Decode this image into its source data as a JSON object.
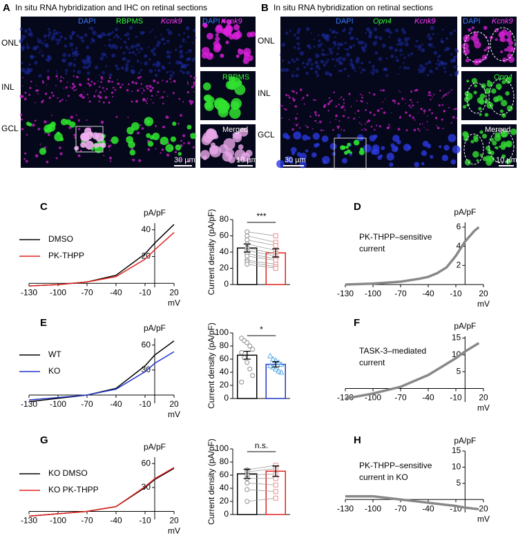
{
  "figure": {
    "panels": [
      {
        "label": "A",
        "title": "In situ RNA hybridization and IHC on retinal sections",
        "channels": [
          "DAPI",
          "RBPMS",
          "Kcnk9"
        ],
        "layers": [
          "ONL",
          "INL",
          "GCL"
        ],
        "scale_bar": "30 µm",
        "insets": [
          [
            "DAPI",
            "Kcnk9"
          ],
          [
            "RBPMS"
          ],
          [
            "Merged"
          ]
        ],
        "inset_scale_bar": "10 µm"
      },
      {
        "label": "B",
        "title": "In situ RNA hybridization on retinal sections",
        "channels": [
          "DAPI",
          "Opn4",
          "Kcnk9"
        ],
        "layers": [
          "ONL",
          "INL",
          "GCL"
        ],
        "scale_bar": "30 µm",
        "insets": [
          [
            "DAPI",
            "Kcnk9"
          ],
          [
            "Opn4"
          ],
          [
            "Merged"
          ]
        ],
        "inset_scale_bar": "10 µm"
      }
    ]
  },
  "chart_data": [
    {
      "type": "line",
      "panel_label": "C",
      "x": [
        -130,
        -100,
        -70,
        -40,
        -10,
        0,
        20
      ],
      "series": [
        {
          "name": "DMSO",
          "color": "#000000",
          "values": [
            -2,
            -1,
            1,
            6,
            22,
            30,
            44
          ]
        },
        {
          "name": "PK-THPP",
          "color": "#e0201b",
          "values": [
            -2,
            -1,
            1,
            5,
            18,
            25,
            38
          ]
        }
      ],
      "xlim": [
        -130,
        20
      ],
      "ylim": [
        -3,
        45
      ],
      "xticks": [
        -130,
        -100,
        -70,
        -40,
        -10,
        20
      ],
      "yticks": [
        20,
        40
      ],
      "x_unit": "mV",
      "y_unit": "pA/pF"
    },
    {
      "type": "bar",
      "ylabel": "Current density (pA/pF)",
      "values": [
        45,
        39
      ],
      "errors": [
        5,
        5
      ],
      "colors": [
        "#000000",
        "#e0201b"
      ],
      "point_colors": [
        "#8c8c8c",
        "#f08c8c"
      ],
      "markers": [
        "circle",
        "square"
      ],
      "paired": true,
      "points": [
        [
          65,
          60,
          55,
          50,
          45,
          42,
          38,
          35,
          30,
          28,
          25
        ],
        [
          60,
          52,
          48,
          42,
          38,
          35,
          32,
          30,
          25,
          22,
          20
        ]
      ],
      "significance": "***",
      "ylim": [
        0,
        80
      ],
      "yticks": [
        0,
        20,
        40,
        60,
        80
      ]
    },
    {
      "type": "line",
      "panel_label": "D",
      "annotation": [
        "PK-THPP–sensitive",
        "current"
      ],
      "x": [
        -130,
        -100,
        -70,
        -50,
        -40,
        -30,
        -20,
        -10,
        0,
        10,
        15
      ],
      "series": [
        {
          "color": "#888888",
          "values": [
            0,
            0.1,
            0.3,
            0.6,
            0.8,
            1.2,
            1.8,
            3,
            4.5,
            5.6,
            6
          ]
        }
      ],
      "xlim": [
        -130,
        20
      ],
      "ylim": [
        0,
        6.5
      ],
      "xticks": [
        -130,
        -100,
        -70,
        -40,
        -10,
        20
      ],
      "yticks": [
        2,
        4,
        6
      ],
      "x_unit": "mV",
      "y_unit": "pA/pF"
    },
    {
      "type": "line",
      "panel_label": "E",
      "x": [
        -130,
        -100,
        -70,
        -40,
        -10,
        0,
        20
      ],
      "series": [
        {
          "name": "WT",
          "color": "#000000",
          "values": [
            -8,
            -4,
            0,
            8,
            35,
            48,
            65
          ]
        },
        {
          "name": "KO",
          "color": "#1f35c8",
          "values": [
            -6,
            -3,
            0,
            7,
            28,
            38,
            52
          ]
        }
      ],
      "xlim": [
        -130,
        20
      ],
      "ylim": [
        -10,
        68
      ],
      "xticks": [
        -130,
        -100,
        -70,
        -40,
        -10,
        20
      ],
      "yticks": [
        30,
        60
      ],
      "x_unit": "mV",
      "y_unit": "pA/pF"
    },
    {
      "type": "bar",
      "ylabel": "Current density (pA/pF)",
      "values": [
        66,
        52
      ],
      "errors": [
        6,
        4
      ],
      "colors": [
        "#000000",
        "#1f35c8"
      ],
      "point_colors": [
        "#8c8c8c",
        "#5aaee8"
      ],
      "markers": [
        "circle",
        "triangle"
      ],
      "paired": false,
      "points": [
        [
          92,
          88,
          85,
          80,
          75,
          70,
          62,
          55,
          45,
          35,
          25
        ],
        [
          65,
          60,
          58,
          55,
          52,
          50,
          48,
          45,
          42,
          40
        ]
      ],
      "significance": "*",
      "ylim": [
        0,
        100
      ],
      "yticks": [
        0,
        20,
        40,
        60,
        80,
        100
      ]
    },
    {
      "type": "line",
      "panel_label": "F",
      "annotation": [
        "TASK-3–mediated",
        "current"
      ],
      "x": [
        -130,
        -100,
        -70,
        -40,
        -10,
        0,
        15
      ],
      "series": [
        {
          "color": "#888888",
          "values": [
            -3,
            -1.5,
            0.5,
            4,
            9,
            11,
            13.5
          ]
        }
      ],
      "xlim": [
        -130,
        20
      ],
      "ylim": [
        -4,
        15.5
      ],
      "xticks": [
        -130,
        -100,
        -70,
        -40,
        -10,
        20
      ],
      "yticks": [
        5,
        10,
        15
      ],
      "x_unit": "mV",
      "y_unit": "pA/pF"
    },
    {
      "type": "line",
      "panel_label": "G",
      "x": [
        -130,
        -100,
        -70,
        -40,
        -10,
        0,
        20
      ],
      "series": [
        {
          "name": "KO DMSO",
          "color": "#000000",
          "values": [
            -6,
            -3,
            0,
            6,
            30,
            40,
            54
          ]
        },
        {
          "name": "KO PK-THPP",
          "color": "#e0201b",
          "values": [
            -6,
            -3,
            0,
            6,
            31,
            41,
            55
          ]
        }
      ],
      "xlim": [
        -130,
        20
      ],
      "ylim": [
        -10,
        68
      ],
      "xticks": [
        -130,
        -100,
        -70,
        -40,
        -10,
        20
      ],
      "yticks": [
        30,
        60
      ],
      "x_unit": "mV",
      "y_unit": "pA/pF"
    },
    {
      "type": "bar",
      "ylabel": "Current density (pA/pF)",
      "values": [
        62,
        66
      ],
      "errors": [
        7,
        8
      ],
      "colors": [
        "#000000",
        "#e0201b"
      ],
      "point_colors": [
        "#8c8c8c",
        "#f08c8c"
      ],
      "markers": [
        "circle",
        "square"
      ],
      "paired": true,
      "points": [
        [
          68,
          65,
          60,
          55,
          48,
          38,
          20
        ],
        [
          75,
          70,
          62,
          55,
          45,
          35,
          25
        ]
      ],
      "significance": "n.s.",
      "ylim": [
        0,
        100
      ],
      "yticks": [
        0,
        20,
        40,
        60,
        80,
        100
      ]
    },
    {
      "type": "line",
      "panel_label": "H",
      "annotation": [
        "PK-THPP–sensitive",
        "current in KO"
      ],
      "x": [
        -130,
        -100,
        -70,
        -40,
        -10,
        0,
        15
      ],
      "series": [
        {
          "color": "#888888",
          "values": [
            1,
            1,
            0,
            -1,
            -2,
            -2.5,
            -3
          ]
        }
      ],
      "xlim": [
        -130,
        20
      ],
      "ylim": [
        -4,
        15
      ],
      "xticks": [
        -130,
        -100,
        -70,
        -40,
        -10,
        20
      ],
      "yticks": [
        5,
        10,
        15
      ],
      "x_unit": "mV",
      "y_unit": "pA/pF"
    }
  ]
}
